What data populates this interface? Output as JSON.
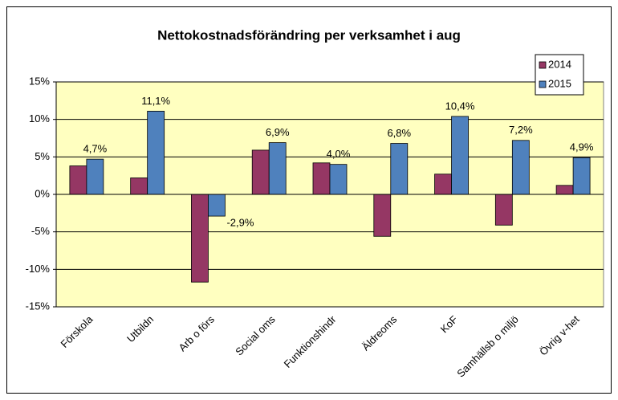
{
  "chart_data": {
    "type": "bar",
    "title": "Nettokostnadsförändring per verksamhet i aug",
    "categories": [
      "Förskola",
      "Utbildn",
      "Arb o förs",
      "Social oms",
      "Funktionshindr",
      "Äldreoms",
      "KoF",
      "Samhällsb o miljö",
      "Övrig v-het"
    ],
    "series": [
      {
        "name": "2014",
        "color": "#953764",
        "values": [
          3.8,
          2.2,
          -11.7,
          5.9,
          4.2,
          -5.6,
          2.7,
          -4.1,
          1.2
        ]
      },
      {
        "name": "2015",
        "color": "#4f81bd",
        "values": [
          4.7,
          11.1,
          -2.9,
          6.9,
          4.0,
          6.8,
          10.4,
          7.2,
          4.9
        ],
        "value_labels": [
          "4,7%",
          "11,1%",
          "-2,9%",
          "6,9%",
          "4,0%",
          "6,8%",
          "10,4%",
          "7,2%",
          "4,9%"
        ]
      }
    ],
    "ylim": [
      -15,
      15
    ],
    "yticks": [
      {
        "value": -15,
        "label": "-15%"
      },
      {
        "value": -10,
        "label": "-10%"
      },
      {
        "value": -5,
        "label": "-5%"
      },
      {
        "value": 0,
        "label": "0%"
      },
      {
        "value": 5,
        "label": "5%"
      },
      {
        "value": 10,
        "label": "10%"
      },
      {
        "value": 15,
        "label": "15%"
      }
    ],
    "grid": true,
    "legend": "top-right"
  }
}
